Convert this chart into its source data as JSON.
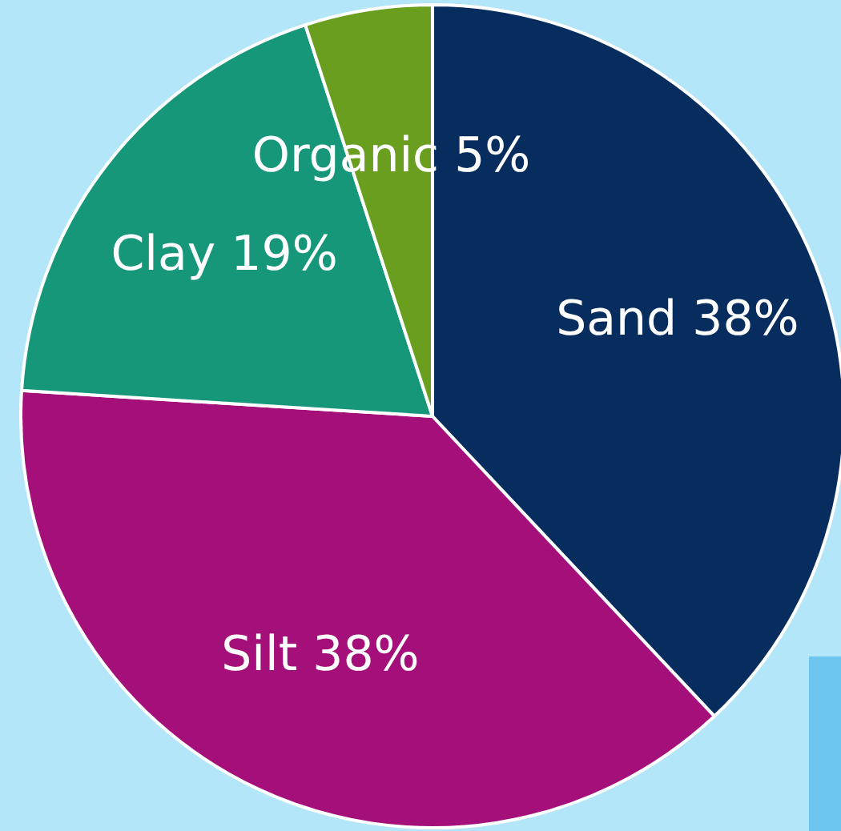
{
  "chart_data": {
    "type": "pie",
    "categories": [
      "Sand",
      "Silt",
      "Clay",
      "Organic"
    ],
    "values": [
      38,
      38,
      19,
      5
    ],
    "colors": [
      "#062d5e",
      "#a50f7a",
      "#16977a",
      "#6a9e1f"
    ],
    "data_labels": true,
    "value_labels": [
      "38%",
      "38%",
      "19%",
      "5%"
    ],
    "legend": false
  }
}
